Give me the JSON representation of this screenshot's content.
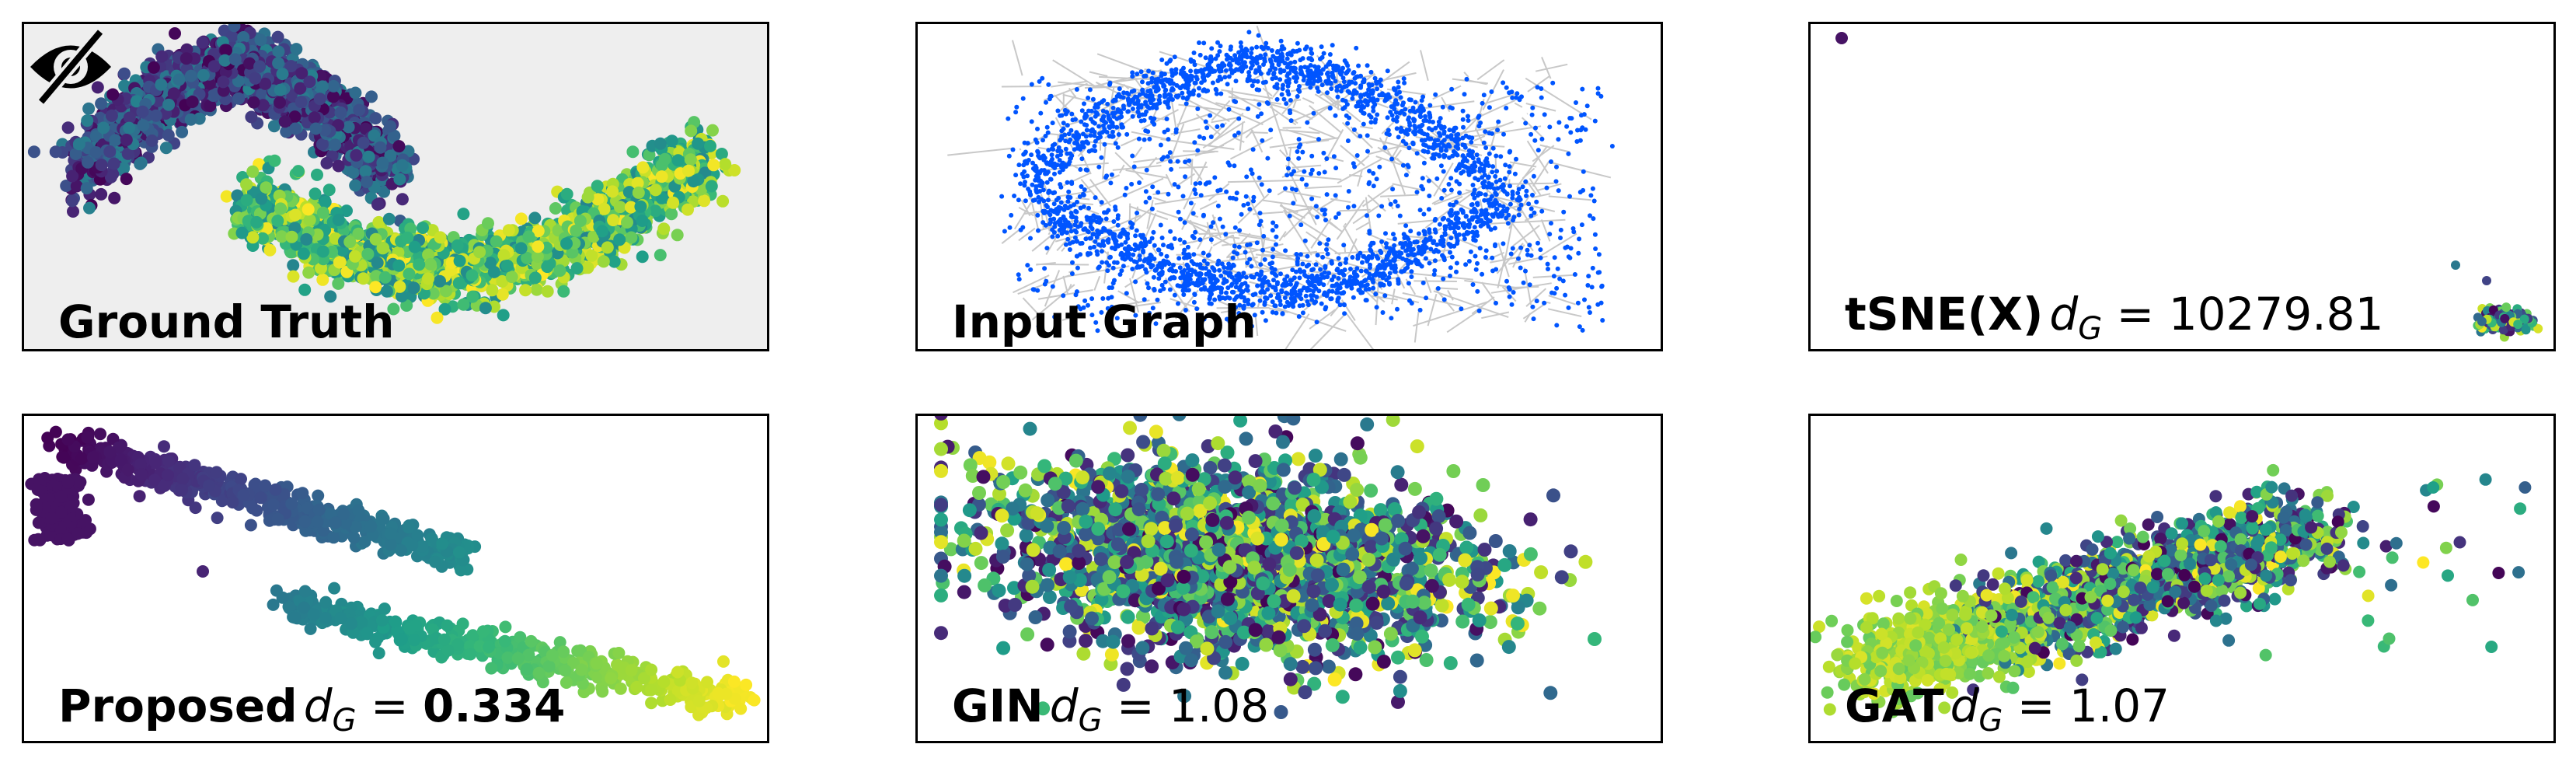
{
  "figure": {
    "panels": [
      {
        "id": "ground-truth",
        "name": "Ground Truth",
        "metric_label": "",
        "metric_value": "",
        "metric_bold": false,
        "background": "#eeeeee",
        "hidden_icon": "eye-slash-icon"
      },
      {
        "id": "input-graph",
        "name": "Input Graph",
        "metric_label": "",
        "metric_value": "",
        "metric_bold": false,
        "background": "#ffffff"
      },
      {
        "id": "tsne",
        "name": "tSNE(X)",
        "metric_label": "d",
        "metric_sub": "G",
        "metric_value": "10279.81",
        "metric_bold": false,
        "background": "#ffffff"
      },
      {
        "id": "proposed",
        "name": "Proposed",
        "metric_label": "d",
        "metric_sub": "G",
        "metric_value": "0.334",
        "metric_bold": true,
        "background": "#ffffff"
      },
      {
        "id": "gin",
        "name": "GIN",
        "metric_label": "d",
        "metric_sub": "G",
        "metric_value": "1.08",
        "metric_bold": false,
        "background": "#ffffff"
      },
      {
        "id": "gat",
        "name": "GAT",
        "metric_label": "d",
        "metric_sub": "G",
        "metric_value": "1.07",
        "metric_bold": false,
        "background": "#ffffff"
      }
    ]
  },
  "chart_data": [
    {
      "type": "scatter",
      "panel": "Ground Truth",
      "colormap": "viridis",
      "shape": "two interleaving moons",
      "grid": false,
      "axes": "hidden"
    },
    {
      "type": "scatter",
      "panel": "Input Graph",
      "color": "#0055ff",
      "edge_color": "#bbbbbb",
      "grid": false,
      "axes": "hidden"
    },
    {
      "type": "scatter",
      "panel": "tSNE(X)",
      "colormap": "viridis",
      "grid": false,
      "axes": "hidden"
    },
    {
      "type": "scatter",
      "panel": "Proposed",
      "colormap": "viridis",
      "grid": false,
      "axes": "hidden"
    },
    {
      "type": "scatter",
      "panel": "GIN",
      "colormap": "viridis",
      "grid": false,
      "axes": "hidden"
    },
    {
      "type": "scatter",
      "panel": "GAT",
      "colormap": "viridis",
      "grid": false,
      "axes": "hidden"
    }
  ]
}
